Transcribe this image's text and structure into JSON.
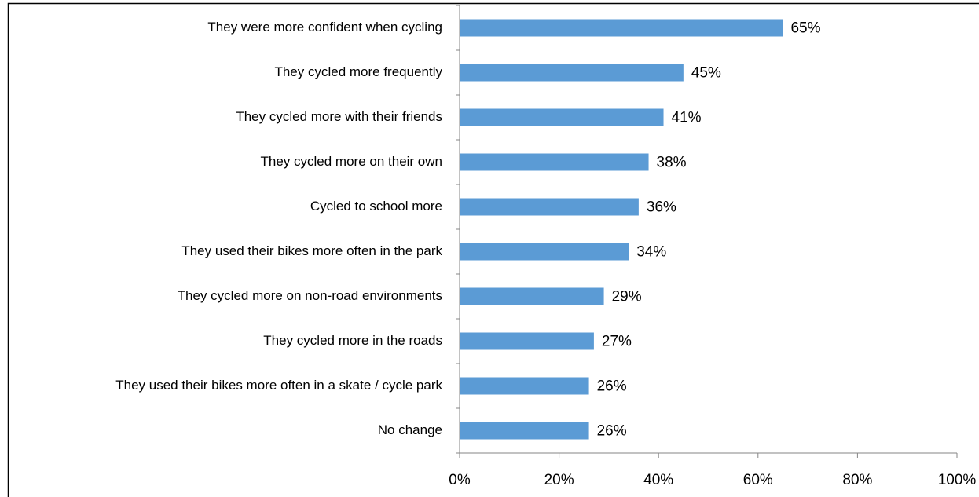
{
  "chart_data": {
    "type": "bar",
    "orientation": "horizontal",
    "categories": [
      "They were more confident when cycling",
      "They cycled more frequently",
      "They cycled more with their friends",
      "They cycled more on their own",
      "Cycled to school more",
      "They used their bikes more often in the park",
      "They cycled more on non-road environments",
      "They cycled more in the roads",
      "They used their bikes more often in a skate / cycle park",
      "No change"
    ],
    "values": [
      65,
      45,
      41,
      38,
      36,
      34,
      29,
      27,
      26,
      26
    ],
    "value_labels": [
      "65%",
      "45%",
      "41%",
      "38%",
      "36%",
      "34%",
      "29%",
      "27%",
      "26%",
      "26%"
    ],
    "color": "#5b9bd5",
    "xlim": [
      0,
      100
    ],
    "xticks": [
      {
        "value": 0,
        "label": "0%"
      },
      {
        "value": 20,
        "label": "20%"
      },
      {
        "value": 40,
        "label": "40%"
      },
      {
        "value": 60,
        "label": "60%"
      },
      {
        "value": 80,
        "label": "80%"
      },
      {
        "value": 100,
        "label": "100%"
      }
    ],
    "grid": false
  }
}
